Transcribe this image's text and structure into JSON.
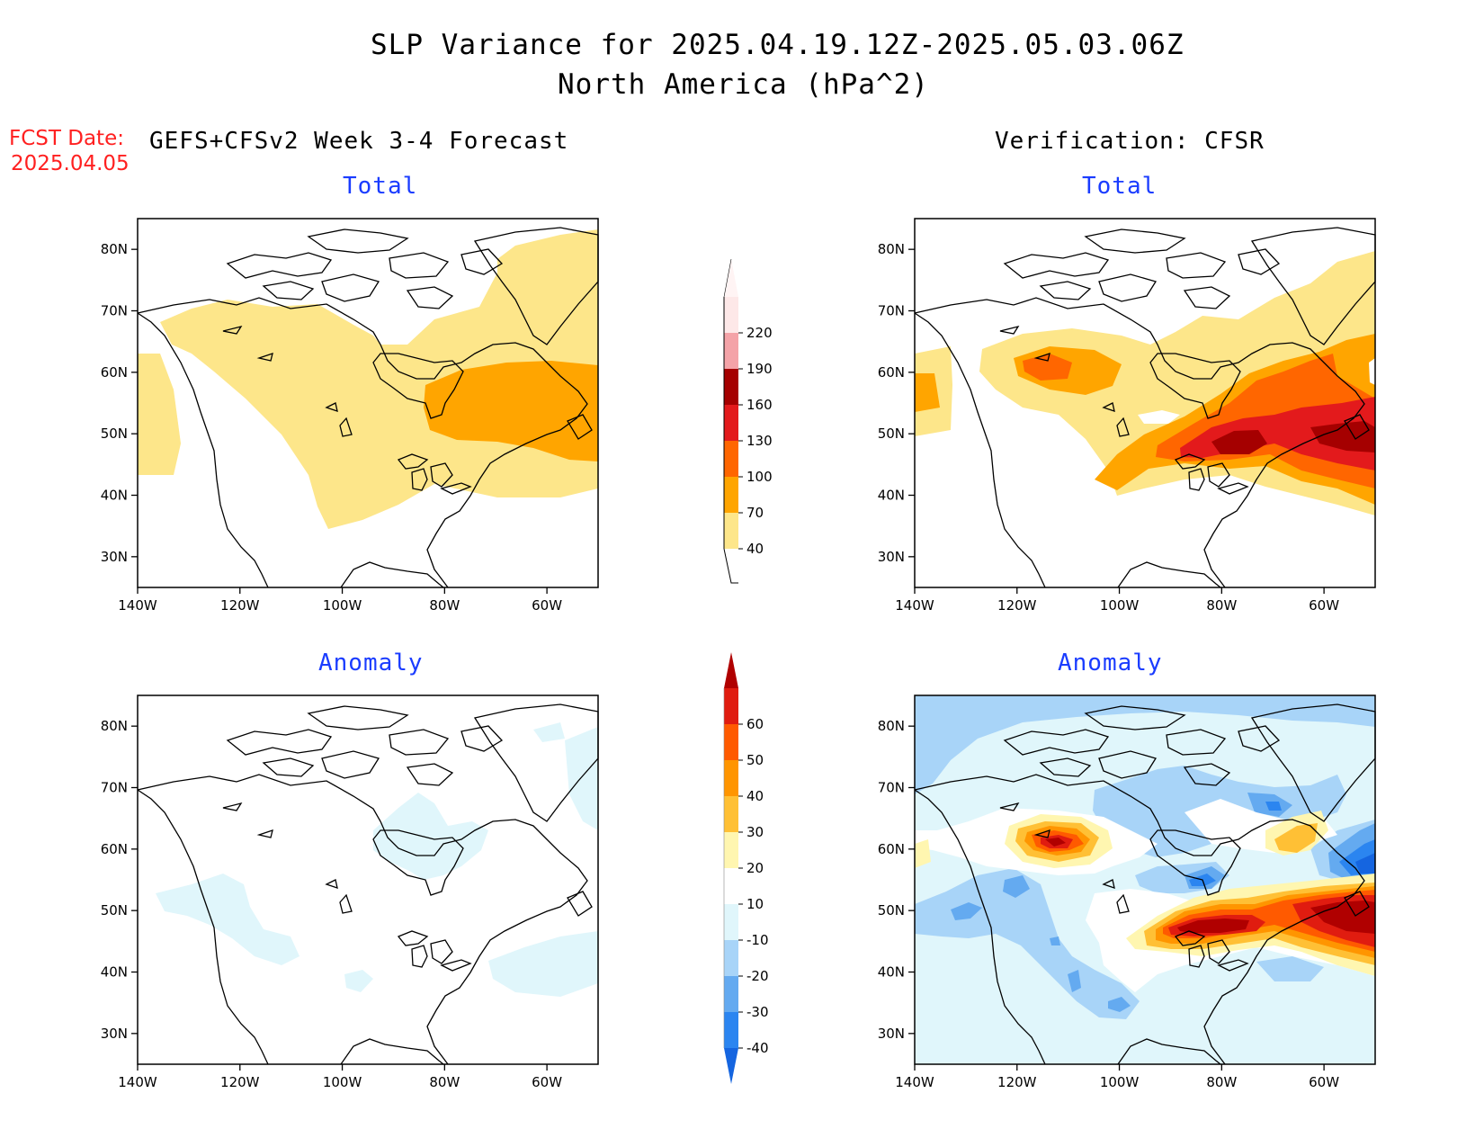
{
  "title": {
    "line1": "SLP Variance for 2025.04.19.12Z-2025.05.03.06Z",
    "line2": "North America (hPa^2)"
  },
  "fcst_date": {
    "label": "FCST Date:",
    "value": "2025.04.05"
  },
  "columns": {
    "left": "GEFS+CFSv2 Week 3-4 Forecast",
    "right": "Verification: CFSR"
  },
  "panels": {
    "top_left": "Total",
    "top_right": "Total",
    "bottom_left": "Anomaly",
    "bottom_right": "Anomaly"
  },
  "axes": {
    "lon_ticks": [
      "140W",
      "120W",
      "100W",
      "80W",
      "60W"
    ],
    "lat_ticks": [
      "80N",
      "70N",
      "60N",
      "50N",
      "40N",
      "30N"
    ]
  },
  "colorbar_total": {
    "levels": [
      "40",
      "70",
      "100",
      "130",
      "160",
      "190",
      "220"
    ],
    "colors": [
      "#fde68a",
      "#ffa500",
      "#ff6600",
      "#e31a1c",
      "#a50000",
      "#f4a3a8",
      "#fde8e8"
    ]
  },
  "colorbar_anomaly": {
    "levels": [
      "-40",
      "-30",
      "-20",
      "-10",
      "10",
      "20",
      "30",
      "40",
      "50",
      "60"
    ],
    "colors": [
      "#1565e0",
      "#2b85f0",
      "#64aaf0",
      "#a8d4f8",
      "#e0f6fb",
      "#ffffff",
      "#fff6b0",
      "#ffc035",
      "#ff9500",
      "#ff5a00",
      "#e01c10",
      "#b00000"
    ]
  },
  "chart_data": {
    "type": "map",
    "region": "North America",
    "lon_range": [
      "140W",
      "50W"
    ],
    "lat_range": [
      "25N",
      "85N"
    ],
    "panels": [
      {
        "name": "Total",
        "source": "GEFS+CFSv2 Week 3-4 Forecast"
      },
      {
        "name": "Total",
        "source": "Verification: CFSR"
      },
      {
        "name": "Anomaly",
        "source": "GEFS+CFSv2 Week 3-4 Forecast"
      },
      {
        "name": "Anomaly",
        "source": "Verification: CFSR"
      }
    ]
  }
}
